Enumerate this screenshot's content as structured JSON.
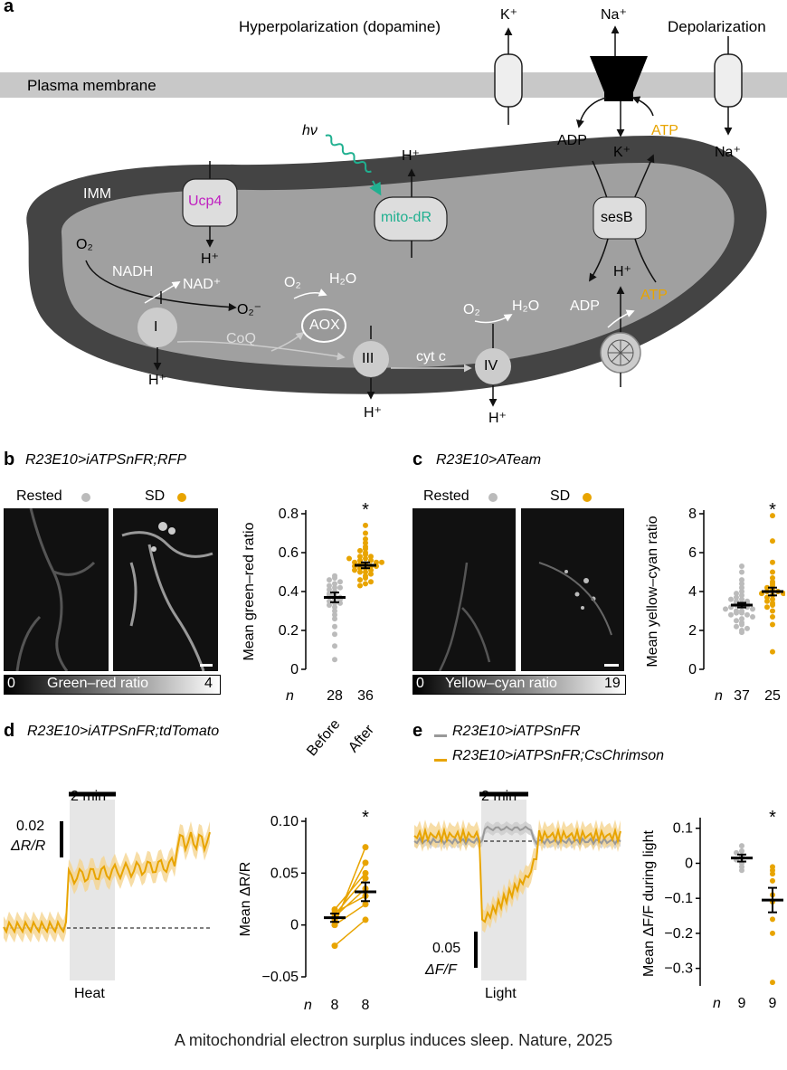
{
  "panel_a": {
    "letter": "a",
    "hyperpolarization": "Hyperpolarization (dopamine)",
    "depolarization": "Depolarization",
    "plasma_membrane": "Plasma membrane",
    "k_plus_top": "K⁺",
    "na_plus_top": "Na⁺",
    "na_plus_right": "Na⁺",
    "adp_top": "ADP",
    "k_plus_mid": "K⁺",
    "atp_top": "ATP",
    "hv": "hν",
    "h_plus_mito_dr": "H⁺",
    "mito_dr": "mito-dR",
    "imm": "IMM",
    "ucp4": "Ucp4",
    "h_plus_ucp4": "H⁺",
    "sesb": "sesB",
    "o2_left": "O₂",
    "nadh": "NADH",
    "nad_plus": "NAD⁺",
    "superoxide": "O₂⁻",
    "complex_i": "I",
    "h_plus_i": "H⁺",
    "coq": "CoQ",
    "o2_aox": "O₂",
    "h2o_aox": "H₂O",
    "aox": "AOX",
    "complex_iii": "III",
    "h_plus_iii": "H⁺",
    "cyt_c": "cyt c",
    "o2_iv": "O₂",
    "h2o_iv": "H₂O",
    "complex_iv": "IV",
    "h_plus_iv": "H⁺",
    "adp_bottom": "ADP",
    "atp_bottom": "ATP",
    "h_plus_synthase": "H⁺",
    "color_atp": "#e8a400",
    "color_ucp4": "#c020c0",
    "color_mito_dr": "#20b090"
  },
  "panel_b": {
    "letter": "b",
    "title": "R23E10>iATPSnFR;RFP",
    "rested": "Rested",
    "sd": "SD",
    "colorbar_min": "0",
    "colorbar_label": "Green–red ratio",
    "colorbar_max": "4",
    "chart_data": {
      "type": "scatter",
      "ylabel": "Mean green–red ratio",
      "ylim": [
        0,
        0.8
      ],
      "yticks": [
        "0",
        "0.2",
        "0.4",
        "0.6",
        "0.8"
      ],
      "n_label": "n",
      "groups": [
        {
          "n": "28",
          "mean": 0.37,
          "sem": 0.025,
          "color": "#bbbbbb",
          "points": [
            0.48,
            0.47,
            0.46,
            0.45,
            0.44,
            0.43,
            0.42,
            0.41,
            0.4,
            0.39,
            0.38,
            0.38,
            0.37,
            0.36,
            0.35,
            0.34,
            0.33,
            0.32,
            0.3,
            0.28,
            0.26,
            0.22,
            0.18,
            0.12,
            0.05,
            0.42,
            0.36,
            0.34
          ]
        },
        {
          "n": "36",
          "mean": 0.535,
          "sem": 0.015,
          "color": "#e8a400",
          "points": [
            0.74,
            0.7,
            0.67,
            0.65,
            0.63,
            0.62,
            0.61,
            0.6,
            0.59,
            0.58,
            0.58,
            0.57,
            0.56,
            0.56,
            0.55,
            0.55,
            0.54,
            0.54,
            0.53,
            0.53,
            0.52,
            0.52,
            0.51,
            0.51,
            0.5,
            0.5,
            0.49,
            0.48,
            0.47,
            0.46,
            0.45,
            0.44,
            0.43,
            0.57,
            0.55,
            0.53
          ]
        }
      ],
      "significance": "*"
    }
  },
  "panel_c": {
    "letter": "c",
    "title": "R23E10>ATeam",
    "rested": "Rested",
    "sd": "SD",
    "colorbar_min": "0",
    "colorbar_label": "Yellow–cyan ratio",
    "colorbar_max": "19",
    "chart_data": {
      "type": "scatter",
      "ylabel": "Mean yellow–cyan ratio",
      "ylim": [
        0,
        8
      ],
      "yticks": [
        "0",
        "2",
        "4",
        "6",
        "8"
      ],
      "n_label": "n",
      "groups": [
        {
          "n": "37",
          "mean": 3.3,
          "sem": 0.12,
          "color": "#bbbbbb",
          "points": [
            5.3,
            5.0,
            4.6,
            4.4,
            4.2,
            4.0,
            3.9,
            3.8,
            3.7,
            3.6,
            3.5,
            3.5,
            3.4,
            3.4,
            3.3,
            3.3,
            3.2,
            3.2,
            3.1,
            3.1,
            3.0,
            3.0,
            2.9,
            2.9,
            2.8,
            2.8,
            2.7,
            2.6,
            2.5,
            2.4,
            2.3,
            2.2,
            2.1,
            2.0,
            1.9,
            3.6,
            3.4
          ]
        },
        {
          "n": "25",
          "mean": 4.0,
          "sem": 0.2,
          "color": "#e8a400",
          "points": [
            7.9,
            6.6,
            5.5,
            5.0,
            4.7,
            4.5,
            4.4,
            4.3,
            4.2,
            4.1,
            4.0,
            4.0,
            3.9,
            3.9,
            3.8,
            3.7,
            3.6,
            3.5,
            3.4,
            3.3,
            3.2,
            3.0,
            2.7,
            2.3,
            0.9
          ]
        }
      ],
      "significance": "*"
    }
  },
  "panel_d": {
    "letter": "d",
    "title": "R23E10>iATPSnFR;tdTomato",
    "time_bar": "2 min",
    "scale_value": "0.02",
    "scale_unit": "ΔR/R",
    "stim_label": "Heat",
    "before": "Before",
    "after": "After",
    "chart_data": {
      "type": "line",
      "ylabel": "Mean ΔR/R",
      "ylim": [
        -0.05,
        0.1
      ],
      "yticks": [
        "0.10",
        "0.05",
        "0",
        "−0.05"
      ],
      "n_label": "n",
      "n_values": [
        "8",
        "8"
      ],
      "pairs": [
        [
          0.0,
          0.075
        ],
        [
          0.005,
          0.06
        ],
        [
          0.01,
          0.045
        ],
        [
          0.008,
          0.035
        ],
        [
          0.012,
          0.028
        ],
        [
          0.0,
          0.02
        ],
        [
          -0.02,
          0.005
        ],
        [
          0.015,
          0.05
        ]
      ],
      "before_mean": 0.007,
      "before_sem": 0.004,
      "after_mean": 0.032,
      "after_sem": 0.009,
      "significance": "*"
    }
  },
  "panel_e": {
    "letter": "e",
    "legend_grey": "R23E10>iATPSnFR",
    "legend_orange": "R23E10>iATPSnFR;CsChrimson",
    "time_bar": "2 min",
    "scale_value": "0.05",
    "scale_unit": "ΔF/F",
    "stim_label": "Light",
    "chart_data": {
      "type": "scatter",
      "ylabel": "Mean ΔF/F during light",
      "ylim": [
        -0.35,
        0.12
      ],
      "yticks": [
        "0.1",
        "0",
        "−0.1",
        "−0.2",
        "−0.3"
      ],
      "n_label": "n",
      "groups": [
        {
          "n": "9",
          "mean": 0.015,
          "sem": 0.01,
          "color": "#bbbbbb",
          "points": [
            0.05,
            0.035,
            0.03,
            0.02,
            0.015,
            0.01,
            0.0,
            -0.01,
            -0.02
          ]
        },
        {
          "n": "9",
          "mean": -0.105,
          "sem": 0.035,
          "color": "#e8a400",
          "points": [
            -0.01,
            -0.03,
            -0.02,
            -0.05,
            -0.09,
            -0.11,
            -0.16,
            -0.2,
            -0.34
          ]
        }
      ],
      "significance": "*"
    }
  },
  "caption": "A mitochondrial electron surplus induces sleep. Nature, 2025"
}
